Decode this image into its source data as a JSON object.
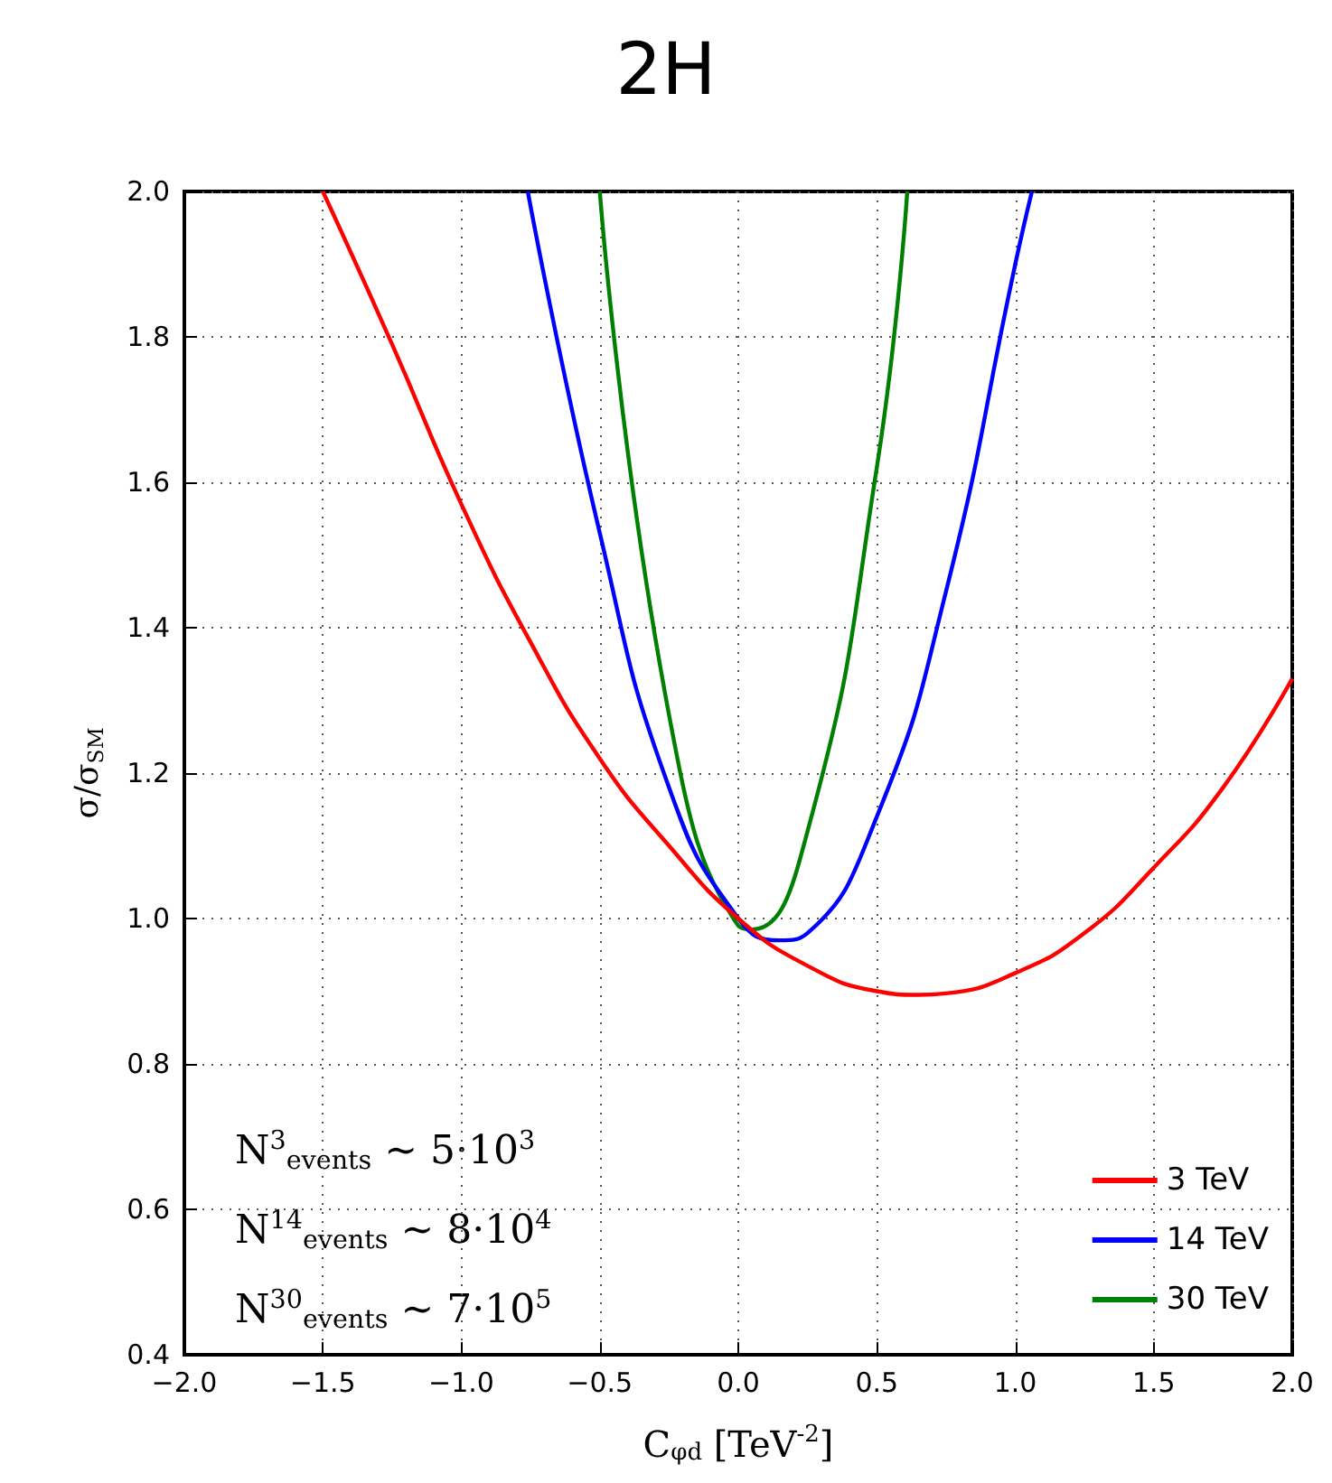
{
  "chart_data": {
    "type": "line",
    "title": "2H",
    "xlabel": "C$_{φd}$ [TeV$^{-2}$]",
    "ylabel": "σ/σ$_{SM}$",
    "x": [
      -1.5,
      -1.25,
      -1.0,
      -0.75,
      -0.5,
      -0.25,
      0.0,
      0.25,
      0.5,
      0.65,
      0.75,
      1.0,
      1.25,
      1.5,
      1.75,
      2.0
    ],
    "series": [
      {
        "name": "3 TeV",
        "color": "#ff0000",
        "values": [
          2.0,
          1.79,
          1.57,
          1.38,
          1.22,
          1.1,
          1.0,
          0.935,
          0.9,
          0.895,
          0.897,
          0.925,
          0.98,
          1.07,
          1.18,
          1.33
        ]
      },
      {
        "name": "14 TeV",
        "color": "#0000ff",
        "x": [
          -0.76,
          -0.5,
          -0.25,
          0.0,
          0.15,
          0.25,
          0.5,
          0.75,
          1.0,
          1.06
        ],
        "values": [
          2.0,
          1.53,
          1.18,
          1.0,
          0.97,
          0.98,
          1.14,
          1.45,
          1.9,
          2.0
        ]
      },
      {
        "name": "30 TeV",
        "color": "#008000",
        "x": [
          -0.5,
          -0.25,
          0.0,
          0.05,
          0.25,
          0.5,
          0.61
        ],
        "values": [
          2.0,
          1.28,
          0.99,
          0.985,
          1.12,
          1.62,
          2.0
        ]
      }
    ],
    "xlim": [
      -2.0,
      2.0
    ],
    "xticks": [
      {
        "value": -2.0,
        "label": "−2.0"
      },
      {
        "value": -1.5,
        "label": "−1.5"
      },
      {
        "value": -1.0,
        "label": "−1.0"
      },
      {
        "value": -0.5,
        "label": "−0.5"
      },
      {
        "value": 0.0,
        "label": "0.0"
      },
      {
        "value": 0.5,
        "label": "0.5"
      },
      {
        "value": 1.0,
        "label": "1.0"
      },
      {
        "value": 1.5,
        "label": "1.5"
      },
      {
        "value": 2.0,
        "label": "2.0"
      }
    ],
    "ylim": [
      0.4,
      2.0
    ],
    "yticks": [
      {
        "value": 0.4,
        "label": "0.4"
      },
      {
        "value": 0.6,
        "label": "0.6"
      },
      {
        "value": 0.8,
        "label": "0.8"
      },
      {
        "value": 1.0,
        "label": "1.0"
      },
      {
        "value": 1.2,
        "label": "1.2"
      },
      {
        "value": 1.4,
        "label": "1.4"
      },
      {
        "value": 1.6,
        "label": "1.6"
      },
      {
        "value": 1.8,
        "label": "1.8"
      },
      {
        "value": 2.0,
        "label": "2.0"
      }
    ],
    "annotations": [
      "N$^{3}$$_{events}$ ∼ 5·10$^{3}$",
      "N$^{14}$$_{events}$ ∼ 8·10$^{4}$",
      "N$^{30}$$_{events}$ ∼ 7·10$^{5}$"
    ],
    "grid": true,
    "legend": "bottom right",
    "marker": "none",
    "line_style": "solid"
  }
}
